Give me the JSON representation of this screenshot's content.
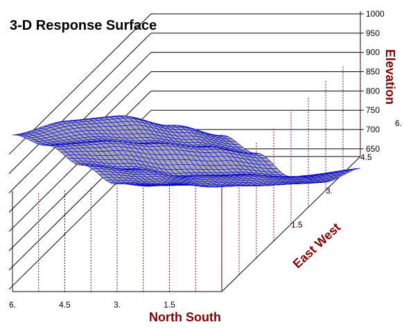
{
  "chart_data": {
    "type": "surface",
    "title": "3-D Response Surface",
    "xlabel": "North South",
    "ylabel": "East West",
    "zlabel": "Elevation",
    "x_ticks": [
      "6.",
      "4.5",
      "3.",
      "1.5"
    ],
    "y_ticks": [
      "1.5",
      "3.",
      "4.5",
      "6."
    ],
    "z_ticks": [
      "1000",
      "950",
      "900",
      "850",
      "800",
      "750",
      "700",
      "650"
    ],
    "xlim": [
      0,
      6
    ],
    "ylim": [
      0,
      6
    ],
    "zlim": [
      600,
      1000
    ],
    "grid_x": [
      0,
      1.5,
      3,
      4.5,
      6
    ],
    "grid_y": [
      0,
      1.5,
      3,
      4.5,
      6
    ],
    "elevation_grid": [
      [
        790,
        830,
        868,
        866,
        840
      ],
      [
        730,
        760,
        782,
        800,
        800
      ],
      [
        655,
        672,
        680,
        712,
        735
      ],
      [
        628,
        632,
        640,
        660,
        672
      ],
      [
        655,
        648,
        645,
        648,
        655
      ]
    ],
    "colors": {
      "surface_fill": "#a8a8b8",
      "surface_mesh": "#0000cc",
      "surface_edge": "#0000ff",
      "axis_label": "#800000",
      "dashed_drop_lines": "#800000",
      "frame": "#000000"
    },
    "grid": true
  }
}
